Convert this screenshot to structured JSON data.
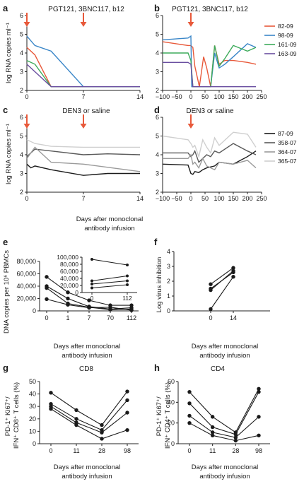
{
  "figure": {
    "panels": [
      "a",
      "b",
      "c",
      "d",
      "e",
      "f",
      "g",
      "h"
    ],
    "colors": {
      "82-09": "#e8593a",
      "98-09": "#3a86c8",
      "161-09": "#3dab5b",
      "163-09": "#6a4fa0",
      "87-09": "#1a1a1a",
      "358-07": "#595959",
      "364-07": "#9a9a9a",
      "365-07": "#cfcfcf",
      "arrow": "#e8593a",
      "markers": "#1a1a1a"
    }
  },
  "chart_data": [
    {
      "panel": "a",
      "type": "line",
      "title": "PGT121, 3BNC117, b12",
      "ylabel": "log RNA copies ml⁻¹",
      "xlabel": "",
      "xlim": [
        0,
        14
      ],
      "ylim": [
        2,
        6
      ],
      "xticks": [
        "0",
        "7",
        "14"
      ],
      "yticks": [
        "2",
        "3",
        "4",
        "5",
        "6"
      ],
      "arrows_at_x": [
        0,
        7
      ],
      "show_legend": false,
      "series": [
        {
          "name": "82-09",
          "x": [
            0,
            1,
            3,
            7,
            14
          ],
          "y": [
            4.3,
            3.9,
            2.2,
            2.2,
            2.2
          ]
        },
        {
          "name": "98-09",
          "x": [
            0,
            1,
            3,
            7,
            14
          ],
          "y": [
            4.9,
            4.4,
            4.1,
            2.2,
            2.2
          ]
        },
        {
          "name": "161-09",
          "x": [
            0,
            1,
            3,
            7,
            14
          ],
          "y": [
            3.6,
            3.4,
            2.2,
            2.2,
            2.2
          ]
        },
        {
          "name": "163-09",
          "x": [
            0,
            1,
            3,
            7,
            14
          ],
          "y": [
            3.4,
            3.0,
            2.2,
            2.2,
            2.2
          ]
        }
      ]
    },
    {
      "panel": "b",
      "type": "line",
      "title": "PGT121, 3BNC117, b12",
      "ylabel": "",
      "xlabel": "",
      "xlim": [
        -100,
        250
      ],
      "ylim": [
        2,
        6
      ],
      "xticks": [
        "−100",
        "−50",
        "0",
        "50",
        "100",
        "150",
        "200",
        "250"
      ],
      "yticks": [
        "2",
        "3",
        "4",
        "5",
        "6"
      ],
      "arrows_at_x": [
        0
      ],
      "show_legend": true,
      "legend": "top-right",
      "series": [
        {
          "name": "82-09",
          "x": [
            -100,
            -10,
            0,
            7,
            14,
            30,
            45,
            56,
            70,
            84,
            100,
            120,
            150,
            200,
            230
          ],
          "y": [
            4.6,
            4.4,
            4.4,
            4.3,
            3.3,
            2.2,
            3.8,
            3.2,
            2.2,
            4.4,
            3.4,
            3.6,
            3.6,
            3.5,
            3.4
          ]
        },
        {
          "name": "98-09",
          "x": [
            -100,
            -10,
            0,
            3,
            7,
            14,
            28,
            56,
            70,
            84,
            100,
            120,
            150,
            200,
            230
          ],
          "y": [
            4.7,
            4.8,
            4.9,
            2.2,
            2.2,
            2.2,
            2.2,
            2.2,
            2.2,
            4.0,
            3.2,
            3.4,
            3.8,
            4.5,
            4.3
          ]
        },
        {
          "name": "161-09",
          "x": [
            -100,
            -10,
            0,
            7,
            14,
            56,
            70,
            84,
            100,
            120,
            150,
            200,
            230
          ],
          "y": [
            4.0,
            4.0,
            3.6,
            2.2,
            2.2,
            2.2,
            2.2,
            4.4,
            3.3,
            3.7,
            4.4,
            4.1,
            4.3
          ]
        },
        {
          "name": "163-09",
          "x": [
            -100,
            -10,
            0,
            7,
            14,
            70,
            100,
            150,
            230
          ],
          "y": [
            3.5,
            3.5,
            3.4,
            2.2,
            2.2,
            2.2,
            2.2,
            2.2,
            2.2
          ]
        }
      ]
    },
    {
      "panel": "c",
      "type": "line",
      "title": "DEN3 or saline",
      "ylabel": "log RNA copies ml⁻¹",
      "xlabel": "",
      "xlim": [
        0,
        14
      ],
      "ylim": [
        2,
        6
      ],
      "xticks": [
        "0",
        "7",
        "14"
      ],
      "yticks": [
        "2",
        "3",
        "4",
        "5",
        "6"
      ],
      "arrows_at_x": [
        0,
        7
      ],
      "show_legend": false,
      "series": [
        {
          "name": "87-09",
          "x": [
            0,
            0.5,
            1,
            3,
            7,
            10,
            14
          ],
          "y": [
            3.5,
            3.3,
            3.4,
            3.2,
            2.9,
            3.0,
            3.0
          ]
        },
        {
          "name": "358-07",
          "x": [
            0,
            1,
            3,
            7,
            10,
            14
          ],
          "y": [
            3.9,
            4.3,
            4.2,
            4.0,
            4.05,
            4.0
          ]
        },
        {
          "name": "364-07",
          "x": [
            0,
            1,
            3,
            7,
            14
          ],
          "y": [
            3.8,
            4.4,
            3.6,
            3.5,
            3.1
          ]
        },
        {
          "name": "365-07",
          "x": [
            0,
            1,
            3,
            7,
            14
          ],
          "y": [
            4.8,
            4.6,
            4.45,
            4.4,
            4.4
          ]
        }
      ]
    },
    {
      "panel": "d",
      "type": "line",
      "title": "DEN3 or saline",
      "ylabel": "",
      "xlabel": "",
      "xlim": [
        -100,
        250
      ],
      "ylim": [
        2,
        6
      ],
      "xticks": [
        "−100",
        "−50",
        "0",
        "50",
        "100",
        "150",
        "200",
        "250"
      ],
      "yticks": [
        "2",
        "3",
        "4",
        "5",
        "6"
      ],
      "arrows_at_x": [
        0
      ],
      "show_legend": true,
      "legend": "top-right",
      "series": [
        {
          "name": "87-09",
          "x": [
            -100,
            -10,
            0,
            7,
            14,
            28,
            42,
            56,
            84,
            100,
            150,
            200,
            230
          ],
          "y": [
            3.5,
            3.45,
            3.0,
            2.95,
            3.1,
            3.05,
            3.2,
            3.3,
            3.4,
            3.6,
            3.5,
            3.9,
            4.2
          ]
        },
        {
          "name": "358-07",
          "x": [
            -100,
            -10,
            0,
            7,
            14,
            28,
            42,
            56,
            70,
            84,
            100,
            150,
            200,
            230
          ],
          "y": [
            4.1,
            4.1,
            3.9,
            4.0,
            4.2,
            3.6,
            3.8,
            4.0,
            3.9,
            4.2,
            4.1,
            4.6,
            4.2,
            4.0
          ]
        },
        {
          "name": "364-07",
          "x": [
            -100,
            -10,
            0,
            7,
            14,
            28,
            42,
            56,
            84,
            100,
            150,
            200,
            230
          ],
          "y": [
            3.8,
            3.8,
            4.0,
            3.5,
            3.6,
            3.3,
            3.8,
            3.4,
            3.2,
            3.6,
            3.5,
            3.7,
            3.3
          ]
        },
        {
          "name": "365-07",
          "x": [
            -100,
            -10,
            0,
            7,
            14,
            28,
            42,
            56,
            70,
            84,
            100,
            150,
            200,
            230
          ],
          "y": [
            5.0,
            4.8,
            4.6,
            4.4,
            4.5,
            3.9,
            4.8,
            4.4,
            4.1,
            4.9,
            4.5,
            5.2,
            5.1,
            4.4
          ]
        }
      ]
    },
    {
      "panel": "e",
      "type": "line",
      "title": "",
      "ylabel": "DNA copies per 10⁶ PBMCs",
      "xlabel": "",
      "categories": [
        "0",
        "1",
        "7",
        "70",
        "112"
      ],
      "ylim": [
        0,
        80000
      ],
      "yticks": [
        "0",
        "20,000",
        "40,000",
        "60,000",
        "80,000"
      ],
      "series": [
        {
          "values": [
            55000,
            30000,
            17000,
            9000,
            9000
          ]
        },
        {
          "values": [
            40000,
            20000,
            7000,
            3000,
            5000
          ]
        },
        {
          "values": [
            37000,
            12000,
            6000,
            2000,
            3000
          ]
        },
        {
          "values": [
            19000,
            10000,
            5000,
            6000,
            1000
          ]
        }
      ],
      "inset": {
        "categories": [
          "0",
          "112"
        ],
        "ylim": [
          0,
          100000
        ],
        "yticks": [
          "0",
          "20,000",
          "40,000",
          "60,000",
          "80,000",
          "100,000"
        ],
        "series": [
          {
            "values": [
              94000,
              78000
            ]
          },
          {
            "values": [
              33000,
              47000
            ]
          },
          {
            "values": [
              24000,
              33000
            ]
          },
          {
            "values": [
              13000,
              22000
            ]
          }
        ]
      }
    },
    {
      "panel": "f",
      "type": "line",
      "title": "",
      "ylabel": "Log virus inhibition",
      "xlabel": "",
      "categories": [
        "0",
        "14"
      ],
      "ylim": [
        0,
        4
      ],
      "yticks": [
        "0",
        "1",
        "2",
        "3",
        "4"
      ],
      "series": [
        {
          "values": [
            1.8,
            2.9
          ]
        },
        {
          "values": [
            1.5,
            2.6
          ]
        },
        {
          "values": [
            1.4,
            2.7
          ]
        },
        {
          "values": [
            0.12,
            2.3
          ]
        }
      ]
    },
    {
      "panel": "g",
      "type": "line",
      "title": "CD8",
      "ylabel": "PD-1⁺ Ki67⁺/ IFN⁺ CD8⁺ T cells (%)",
      "xlabel": "",
      "categories": [
        "0",
        "11",
        "28",
        "98"
      ],
      "ylim": [
        0,
        50
      ],
      "yticks": [
        "0",
        "10",
        "20",
        "30",
        "40",
        "50"
      ],
      "series": [
        {
          "values": [
            41,
            27,
            15,
            42
          ]
        },
        {
          "values": [
            32,
            20,
            11,
            35
          ]
        },
        {
          "values": [
            30,
            17,
            9,
            25
          ]
        },
        {
          "values": [
            28,
            15,
            4,
            11
          ]
        }
      ]
    },
    {
      "panel": "h",
      "type": "line",
      "title": "CD4",
      "ylabel": "PD-1⁺ Ki67⁺/ IFN⁺ CD4⁺ T cells (%)",
      "xlabel": "",
      "categories": [
        "0",
        "11",
        "28",
        "98"
      ],
      "ylim": [
        0,
        60
      ],
      "yticks": [
        "0",
        "20",
        "40",
        "60"
      ],
      "series": [
        {
          "values": [
            50,
            26,
            11,
            53
          ]
        },
        {
          "values": [
            39,
            16,
            9,
            50
          ]
        },
        {
          "values": [
            27,
            11,
            6,
            26
          ]
        },
        {
          "values": [
            20,
            8,
            3,
            8
          ]
        }
      ]
    }
  ],
  "xaxis_caption_line1": "Days after monoclonal",
  "xaxis_caption_line2": "antibody infusion"
}
